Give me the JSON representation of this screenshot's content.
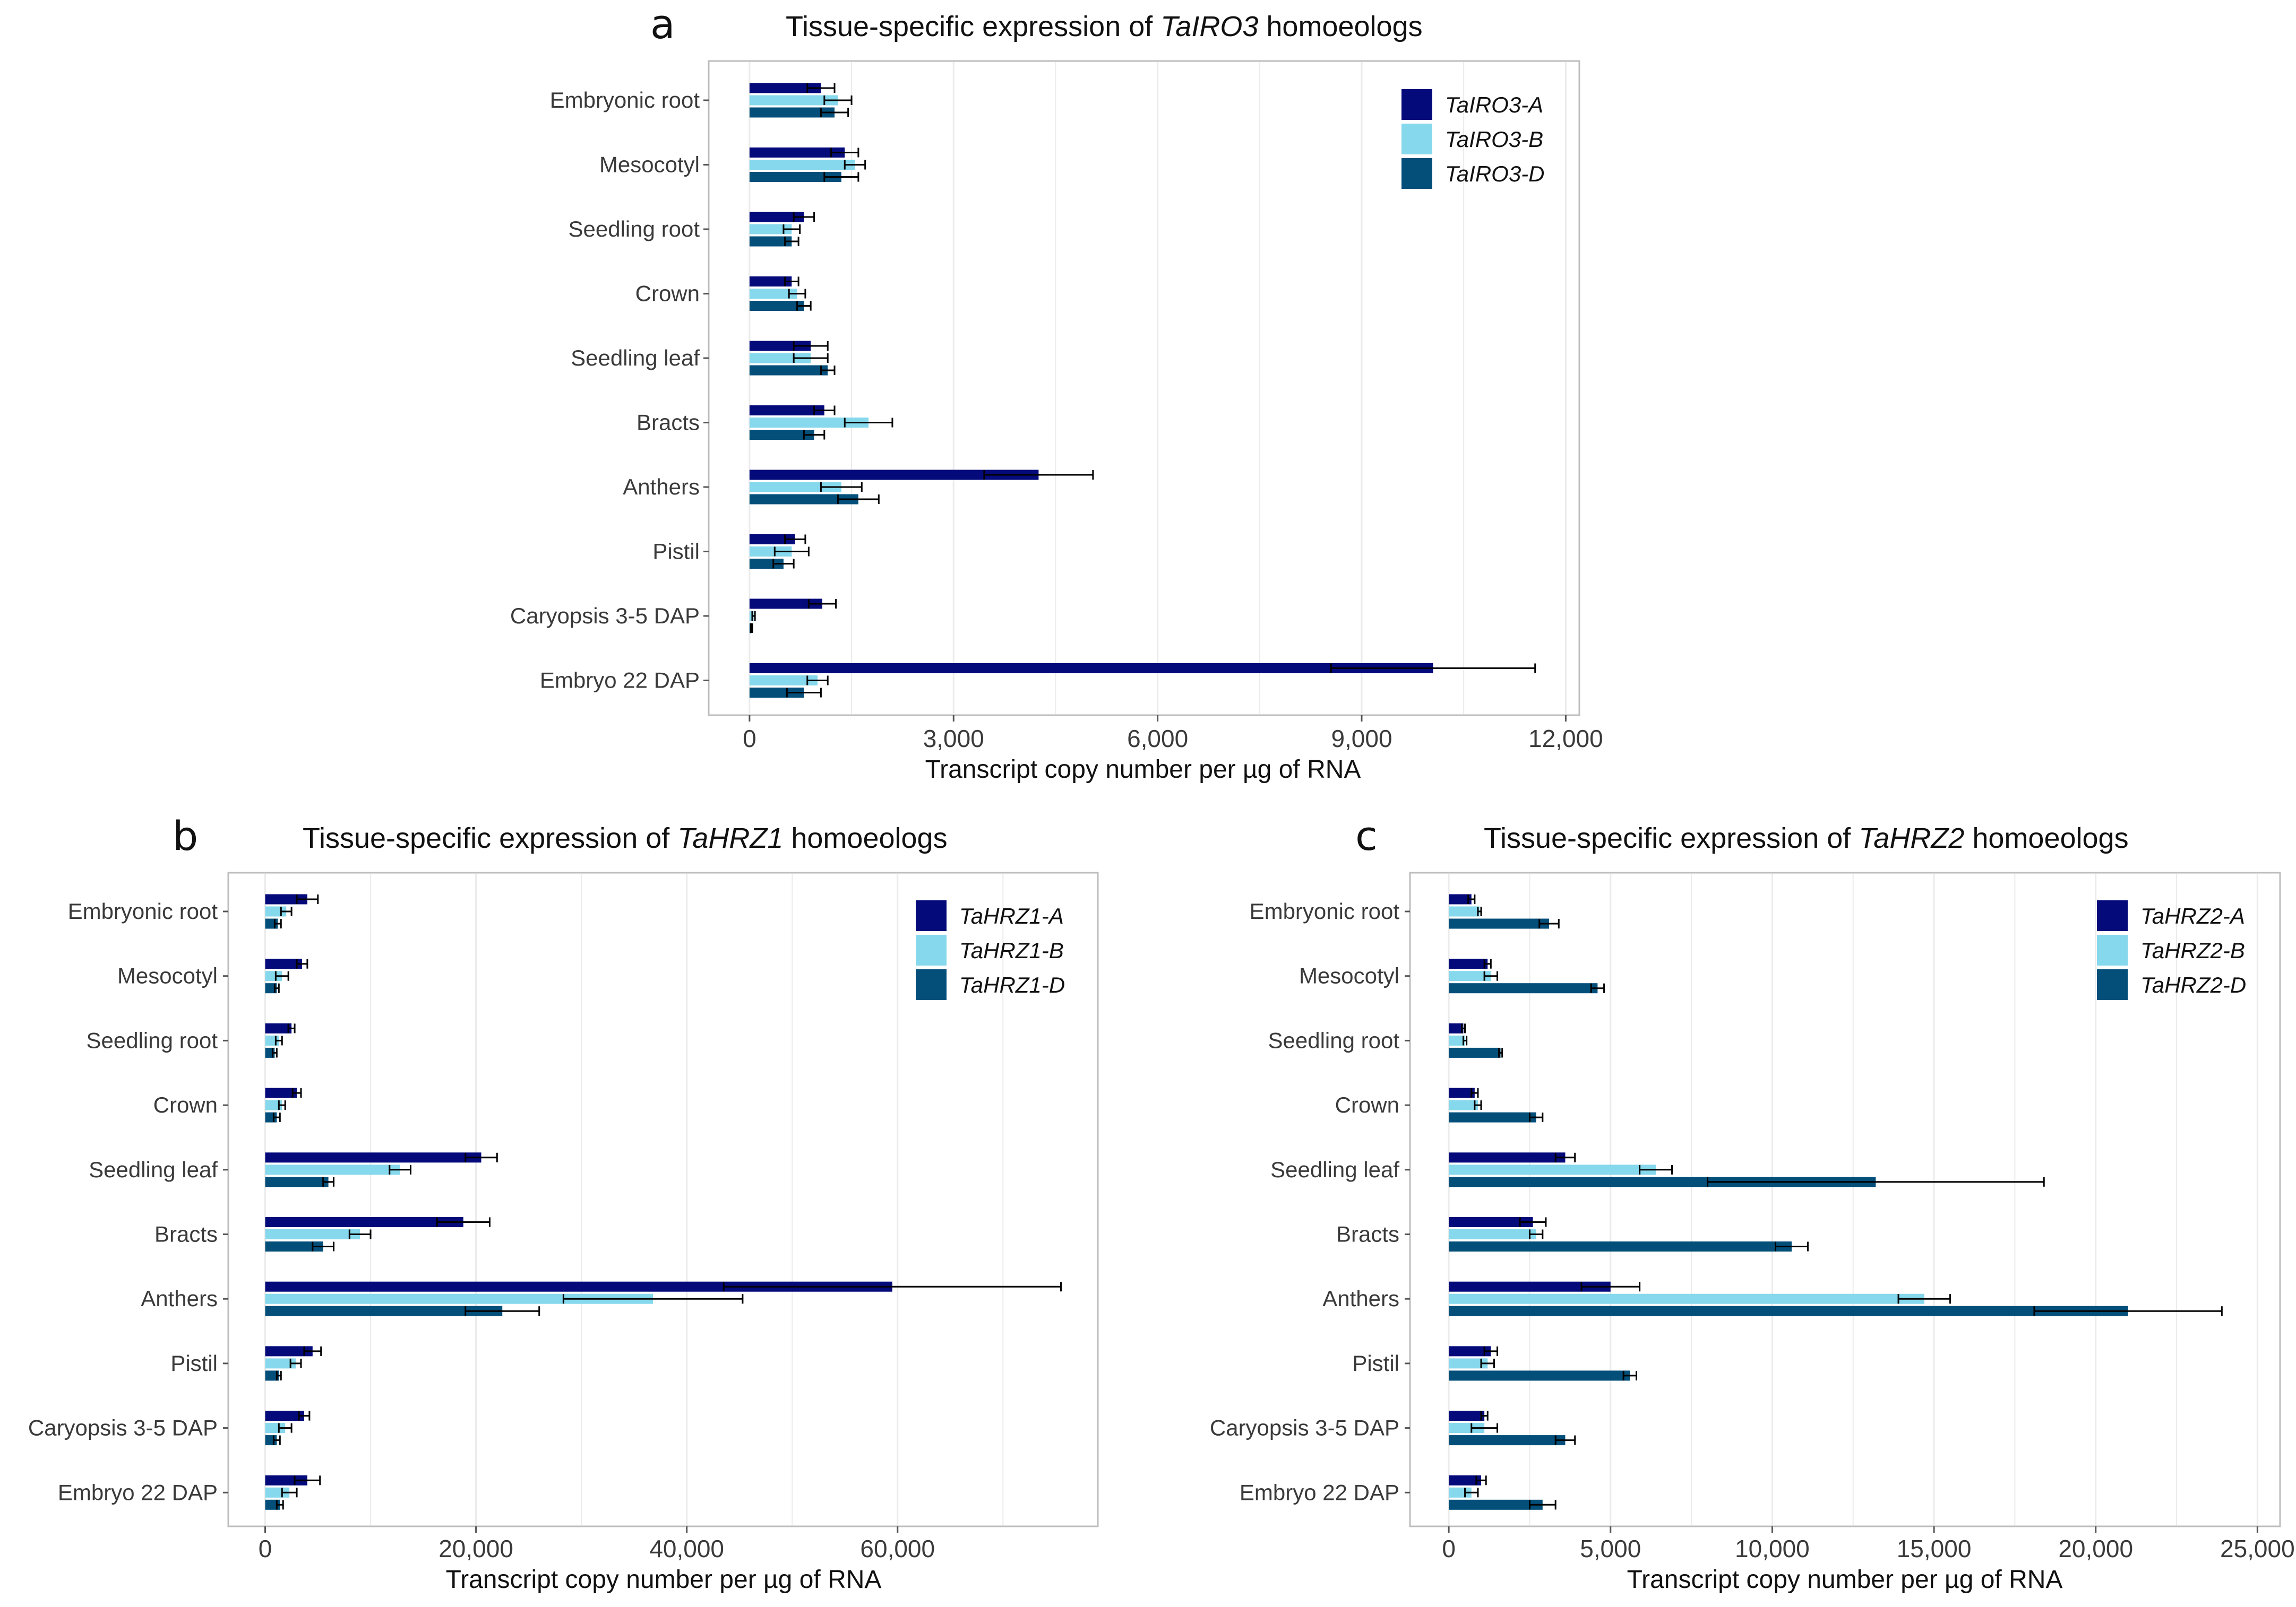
{
  "colors": {
    "A": "#050a7a",
    "B": "#86d8ec",
    "D": "#034f7a",
    "grid": "#ebebeb",
    "frame": "#bdbdbd"
  },
  "categories": [
    "Embryonic root",
    "Mesocotyl",
    "Seedling root",
    "Crown",
    "Seedling leaf",
    "Bracts",
    "Anthers",
    "Pistil",
    "Caryopsis 3-5 DAP",
    "Embryo 22 DAP"
  ],
  "chart_data": [
    {
      "letter": "a",
      "type": "bar",
      "orientation": "horizontal",
      "title_pre": "Tissue-specific expression of ",
      "title_gene": "TaIRO3",
      "title_post": " homoeologs",
      "xlabel": "Transcript copy number per µg of RNA",
      "xlim": [
        -600,
        12200
      ],
      "xticks": [
        0,
        3000,
        6000,
        9000,
        12000
      ],
      "xtick_labels": [
        "0",
        "3,000",
        "6,000",
        "9,000",
        "12,000"
      ],
      "grid_minor": [
        1500,
        4500,
        7500,
        10500
      ],
      "legend_position": "top-right",
      "series": [
        {
          "name": "TaIRO3-A",
          "values": [
            1050,
            1400,
            800,
            620,
            900,
            1100,
            4250,
            670,
            1070,
            10050
          ],
          "errors": [
            200,
            200,
            150,
            100,
            250,
            150,
            800,
            150,
            200,
            1500
          ]
        },
        {
          "name": "TaIRO3-B",
          "values": [
            1300,
            1550,
            620,
            700,
            900,
            1750,
            1350,
            620,
            60,
            1000
          ],
          "errors": [
            200,
            150,
            120,
            120,
            250,
            350,
            300,
            250,
            20,
            150
          ]
        },
        {
          "name": "TaIRO3-D",
          "values": [
            1250,
            1350,
            620,
            800,
            1150,
            950,
            1600,
            500,
            30,
            800
          ],
          "errors": [
            200,
            250,
            100,
            100,
            100,
            150,
            300,
            150,
            10,
            250
          ]
        }
      ]
    },
    {
      "letter": "b",
      "type": "bar",
      "orientation": "horizontal",
      "title_pre": "Tissue-specific expression of ",
      "title_gene": "TaHRZ1",
      "title_post": " homoeologs",
      "xlabel": "Transcript copy number per µg of RNA",
      "xlim": [
        -3500,
        79000
      ],
      "xticks": [
        0,
        20000,
        40000,
        60000
      ],
      "xtick_labels": [
        "0",
        "20,000",
        "40,000",
        "60,000"
      ],
      "grid_minor": [
        10000,
        30000,
        50000,
        70000
      ],
      "legend_position": "top-right",
      "series": [
        {
          "name": "TaHRZ1-A",
          "values": [
            4000,
            3500,
            2500,
            3000,
            20500,
            18800,
            59500,
            4500,
            3700,
            4000
          ],
          "errors": [
            1000,
            500,
            300,
            400,
            1500,
            2500,
            16000,
            800,
            500,
            1200
          ]
        },
        {
          "name": "TaHRZ1-B",
          "values": [
            2000,
            1600,
            1300,
            1600,
            12800,
            9000,
            36800,
            2900,
            1900,
            2300
          ],
          "errors": [
            500,
            600,
            300,
            300,
            1000,
            1000,
            8500,
            500,
            600,
            700
          ]
        },
        {
          "name": "TaHRZ1-D",
          "values": [
            1200,
            1100,
            900,
            1100,
            6000,
            5500,
            22500,
            1300,
            1100,
            1400
          ],
          "errors": [
            300,
            200,
            200,
            300,
            500,
            1000,
            3500,
            200,
            300,
            300
          ]
        }
      ]
    },
    {
      "letter": "c",
      "type": "bar",
      "orientation": "horizontal",
      "title_pre": "Tissue-specific expression of ",
      "title_gene": "TaHRZ2",
      "title_post": " homoeologs",
      "xlabel": "Transcript copy number per µg of RNA",
      "xlim": [
        -1200,
        25700
      ],
      "xticks": [
        0,
        5000,
        10000,
        15000,
        20000,
        25000
      ],
      "xtick_labels": [
        "0",
        "5,000",
        "10,000",
        "15,000",
        "20,000",
        "25,000"
      ],
      "grid_minor": [
        2500,
        7500,
        12500,
        17500,
        22500
      ],
      "legend_position": "top-right",
      "series": [
        {
          "name": "TaHRZ2-A",
          "values": [
            700,
            1200,
            450,
            800,
            3600,
            2600,
            5000,
            1300,
            1100,
            1000
          ],
          "errors": [
            100,
            100,
            50,
            100,
            300,
            400,
            900,
            200,
            100,
            150
          ]
        },
        {
          "name": "TaHRZ2-B",
          "values": [
            950,
            1300,
            500,
            900,
            6400,
            2700,
            14700,
            1200,
            1100,
            700
          ],
          "errors": [
            50,
            200,
            50,
            100,
            500,
            200,
            800,
            200,
            400,
            200
          ]
        },
        {
          "name": "TaHRZ2-D",
          "values": [
            3100,
            4600,
            1600,
            2700,
            13200,
            10600,
            21000,
            5600,
            3600,
            2900
          ],
          "errors": [
            300,
            200,
            50,
            200,
            5200,
            500,
            2900,
            200,
            300,
            400
          ]
        }
      ]
    }
  ]
}
